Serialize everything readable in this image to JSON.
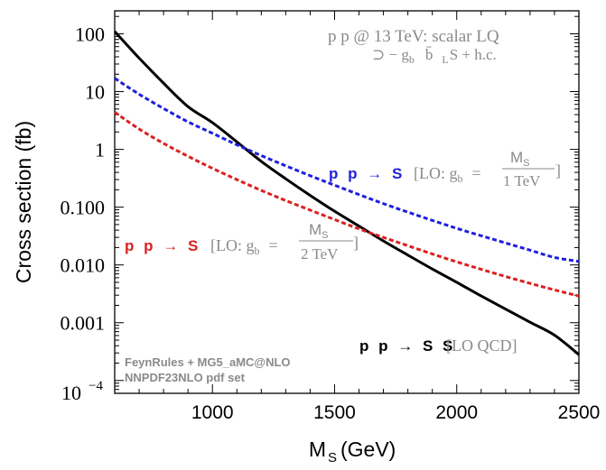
{
  "chart_data": {
    "type": "line",
    "xlabel": "M",
    "xlabel_sub": "S",
    "xlabel_unit": "(GeV)",
    "ylabel": "Cross section (fb)",
    "xlim": [
      600,
      2500
    ],
    "ylim": [
      6e-05,
      250
    ],
    "yscale": "log",
    "grid": false,
    "xticks": [
      1000,
      1500,
      2000,
      2500
    ],
    "xtick_labels": [
      "1000",
      "1500",
      "2000",
      "2500"
    ],
    "yticks": [
      0.0001,
      0.001,
      0.01,
      0.1,
      1,
      10,
      100
    ],
    "ytick_labels": [
      "",
      "0.001",
      "0.010",
      "0.100",
      "1",
      "10",
      "100"
    ],
    "ytick_bottom_base": "10",
    "ytick_bottom_exp": "−4",
    "series": [
      {
        "name": "p p → S S [LO QCD]",
        "color": "#000000",
        "style": "solid",
        "x": [
          600,
          700,
          800,
          900,
          1000,
          1100,
          1200,
          1300,
          1400,
          1500,
          1600,
          1700,
          1800,
          1900,
          2000,
          2100,
          2200,
          2300,
          2400,
          2500
        ],
        "y": [
          110,
          38,
          14,
          5.5,
          2.9,
          1.35,
          0.62,
          0.31,
          0.16,
          0.085,
          0.047,
          0.026,
          0.0148,
          0.0085,
          0.005,
          0.0029,
          0.00172,
          0.00102,
          0.00061,
          0.00028
        ]
      },
      {
        "name": "p p → S [LO: g_b = M_S / 1 TeV]",
        "color": "#1f1fdd",
        "style": "dashed",
        "x": [
          600,
          700,
          800,
          900,
          1000,
          1100,
          1200,
          1300,
          1400,
          1500,
          1600,
          1700,
          1800,
          1900,
          2000,
          2100,
          2200,
          2300,
          2400,
          2500
        ],
        "y": [
          17,
          9,
          5.1,
          3.0,
          1.9,
          1.2,
          0.78,
          0.52,
          0.35,
          0.24,
          0.165,
          0.115,
          0.082,
          0.059,
          0.043,
          0.032,
          0.024,
          0.018,
          0.0135,
          0.0115
        ]
      },
      {
        "name": "p p → S [LO: g_b = M_S / 2 TeV]",
        "color": "#dd1f1f",
        "style": "dashed",
        "x": [
          600,
          700,
          800,
          900,
          1000,
          1100,
          1200,
          1300,
          1400,
          1500,
          1600,
          1700,
          1800,
          1900,
          2000,
          2100,
          2200,
          2300,
          2400,
          2500
        ],
        "y": [
          4.4,
          2.25,
          1.27,
          0.76,
          0.47,
          0.3,
          0.195,
          0.13,
          0.089,
          0.061,
          0.042,
          0.03,
          0.0215,
          0.0155,
          0.0113,
          0.0084,
          0.0063,
          0.0048,
          0.0037,
          0.0029
        ]
      }
    ],
    "annotations": {
      "process": "p p @ 13 TeV: scalar LQ",
      "lagrangian": "⊃ − g",
      "lagrangian_sub": "b",
      "lagrangian_rest": "b̄",
      "lagrangian_sub2": "L",
      "lagrangian_end": "S + h.c.",
      "blue_proc": "p p → S",
      "blue_lo": "[LO: g",
      "blue_lo_sub": "b",
      "blue_eq": "=",
      "blue_num": "M",
      "blue_num_sub": "S",
      "blue_den": "1 TeV",
      "close_bracket": "]",
      "red_proc": "p p → S",
      "red_lo": "[LO: g",
      "red_lo_sub": "b",
      "red_eq": "=",
      "red_num": "M",
      "red_num_sub": "S",
      "red_den": "2 TeV",
      "black_proc": "p p → S S",
      "black_lo": "[LO QCD]",
      "tool_line1": "FeynRules + MG5_aMC@NLO",
      "tool_line2": "NNPDF23NLO pdf set"
    }
  }
}
